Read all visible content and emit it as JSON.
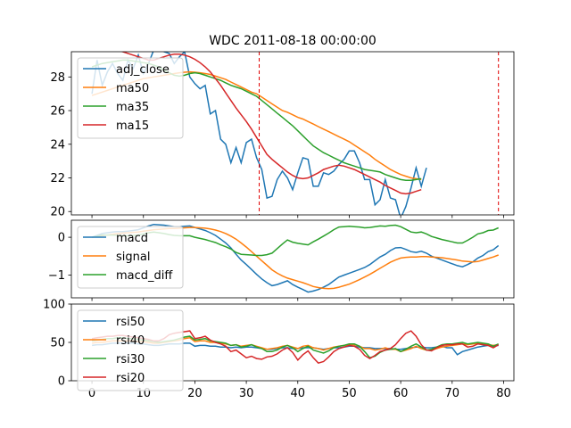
{
  "chart_data": {
    "type": "line",
    "title": "WDC 2011-08-18 00:00:00",
    "x_ticks": [
      0,
      10,
      20,
      30,
      40,
      50,
      60,
      70,
      80
    ],
    "xlim": [
      -4,
      82
    ],
    "vlines": [
      32.5,
      79
    ],
    "colors": {
      "blue": "#1f77b4",
      "orange": "#ff7f0e",
      "green": "#2ca02c",
      "red": "#d62728",
      "vline": "#e00000"
    },
    "panels": [
      {
        "id": "price",
        "ylim": [
          19.8,
          29.5
        ],
        "y_ticks": [
          20,
          22,
          24,
          26,
          28
        ],
        "legend": "upper left",
        "series": [
          {
            "name": "adj_close",
            "color": "blue",
            "x_start": 0,
            "values": [
              27.0,
              29.0,
              27.5,
              28.3,
              28.8,
              28.2,
              27.8,
              29.0,
              28.5,
              29.3,
              28.2,
              28.8,
              29.6,
              29.8,
              29.5,
              29.4,
              28.8,
              29.2,
              29.5,
              28.0,
              27.6,
              27.3,
              27.5,
              25.8,
              26.0,
              24.3,
              24.0,
              22.9,
              23.8,
              22.9,
              24.1,
              24.3,
              23.2,
              22.5,
              20.8,
              20.9,
              21.9,
              22.4,
              22.0,
              21.3,
              22.3,
              23.2,
              23.1,
              21.5,
              21.5,
              22.3,
              22.2,
              22.4,
              22.8,
              23.1,
              23.6,
              23.6,
              22.9,
              21.9,
              21.9,
              20.4,
              20.7,
              21.9,
              20.8,
              20.7,
              19.6,
              20.3,
              21.4,
              22.6,
              21.5,
              22.6
            ]
          },
          {
            "name": "ma50",
            "color": "orange",
            "x_start": 0,
            "values": [
              26.9,
              27.0,
              27.1,
              27.2,
              27.3,
              27.4,
              27.5,
              27.6,
              27.7,
              27.8,
              27.9,
              27.95,
              28.0,
              28.05,
              28.1,
              28.15,
              28.2,
              28.25,
              28.28,
              28.3,
              28.28,
              28.25,
              28.2,
              28.15,
              28.05,
              27.95,
              27.85,
              27.7,
              27.55,
              27.4,
              27.25,
              27.1,
              27.0,
              26.8,
              26.6,
              26.4,
              26.2,
              26.0,
              25.9,
              25.75,
              25.6,
              25.5,
              25.35,
              25.2,
              25.05,
              24.9,
              24.75,
              24.6,
              24.45,
              24.3,
              24.15,
              23.95,
              23.75,
              23.55,
              23.35,
              23.1,
              22.9,
              22.7,
              22.5,
              22.35,
              22.2,
              22.1,
              22.0,
              21.95,
              21.9
            ]
          },
          {
            "name": "ma35",
            "color": "green",
            "x_start": 0,
            "values": [
              28.6,
              28.7,
              28.8,
              28.85,
              28.9,
              28.95,
              29.0,
              29.0,
              28.95,
              28.9,
              28.85,
              28.8,
              28.7,
              28.6,
              28.4,
              28.25,
              28.1,
              28.05,
              28.1,
              28.2,
              28.25,
              28.2,
              28.1,
              28.0,
              27.9,
              27.8,
              27.65,
              27.5,
              27.4,
              27.3,
              27.15,
              27.0,
              26.85,
              26.6,
              26.35,
              26.1,
              25.85,
              25.6,
              25.35,
              25.1,
              24.8,
              24.5,
              24.2,
              23.9,
              23.7,
              23.5,
              23.35,
              23.2,
              23.05,
              22.9,
              22.8,
              22.7,
              22.6,
              22.5,
              22.45,
              22.4,
              22.35,
              22.2,
              22.1,
              22.0,
              21.9,
              21.85,
              21.85,
              21.9,
              21.95
            ]
          },
          {
            "name": "ma15",
            "color": "red",
            "x_start": 0,
            "values": [
              29.6,
              29.7,
              29.7,
              29.75,
              29.7,
              29.6,
              29.5,
              29.4,
              29.3,
              29.2,
              29.1,
              29.0,
              29.0,
              29.1,
              29.2,
              29.3,
              29.35,
              29.35,
              29.3,
              29.2,
              29.05,
              28.85,
              28.6,
              28.3,
              27.9,
              27.5,
              27.05,
              26.6,
              26.15,
              25.75,
              25.35,
              24.9,
              24.4,
              23.9,
              23.4,
              23.1,
              22.85,
              22.6,
              22.35,
              22.15,
              22.0,
              21.95,
              22.0,
              22.15,
              22.3,
              22.5,
              22.6,
              22.7,
              22.75,
              22.7,
              22.6,
              22.5,
              22.35,
              22.2,
              22.05,
              21.9,
              21.75,
              21.55,
              21.4,
              21.25,
              21.1,
              21.05,
              21.1,
              21.2,
              21.3
            ]
          }
        ]
      },
      {
        "id": "macd",
        "ylim": [
          -1.6,
          0.45
        ],
        "y_ticks": [
          0,
          -1
        ],
        "legend": "upper left",
        "series": [
          {
            "name": "macd",
            "color": "blue",
            "x_start": 0,
            "values": [
              0.0,
              0.05,
              0.1,
              0.12,
              0.14,
              0.15,
              0.15,
              0.16,
              0.18,
              0.2,
              0.25,
              0.3,
              0.34,
              0.33,
              0.32,
              0.3,
              0.28,
              0.28,
              0.29,
              0.3,
              0.26,
              0.22,
              0.18,
              0.12,
              0.05,
              -0.05,
              -0.15,
              -0.28,
              -0.45,
              -0.6,
              -0.72,
              -0.85,
              -0.98,
              -1.1,
              -1.2,
              -1.28,
              -1.25,
              -1.2,
              -1.15,
              -1.25,
              -1.32,
              -1.38,
              -1.45,
              -1.42,
              -1.38,
              -1.32,
              -1.25,
              -1.15,
              -1.05,
              -1.0,
              -0.95,
              -0.9,
              -0.85,
              -0.8,
              -0.72,
              -0.62,
              -0.52,
              -0.45,
              -0.35,
              -0.28,
              -0.27,
              -0.32,
              -0.38,
              -0.4,
              -0.37,
              -0.42,
              -0.5,
              -0.55,
              -0.6,
              -0.65,
              -0.7,
              -0.75,
              -0.78,
              -0.72,
              -0.65,
              -0.55,
              -0.48,
              -0.38,
              -0.33,
              -0.22
            ]
          },
          {
            "name": "signal",
            "color": "orange",
            "x_start": 0,
            "values": [
              0.0,
              0.02,
              0.04,
              0.06,
              0.08,
              0.1,
              0.11,
              0.12,
              0.13,
              0.14,
              0.16,
              0.18,
              0.2,
              0.21,
              0.22,
              0.23,
              0.23,
              0.24,
              0.25,
              0.26,
              0.26,
              0.25,
              0.24,
              0.22,
              0.19,
              0.15,
              0.1,
              0.03,
              -0.05,
              -0.15,
              -0.26,
              -0.38,
              -0.5,
              -0.62,
              -0.74,
              -0.86,
              -0.95,
              -1.02,
              -1.08,
              -1.12,
              -1.16,
              -1.2,
              -1.25,
              -1.3,
              -1.33,
              -1.35,
              -1.36,
              -1.35,
              -1.32,
              -1.28,
              -1.24,
              -1.18,
              -1.12,
              -1.05,
              -0.98,
              -0.9,
              -0.82,
              -0.74,
              -0.66,
              -0.6,
              -0.55,
              -0.53,
              -0.52,
              -0.52,
              -0.51,
              -0.51,
              -0.52,
              -0.53,
              -0.54,
              -0.56,
              -0.58,
              -0.6,
              -0.63,
              -0.64,
              -0.65,
              -0.64,
              -0.6,
              -0.56,
              -0.52,
              -0.47
            ]
          },
          {
            "name": "macd_diff",
            "color": "green",
            "x_start": 0,
            "values": [
              0.0,
              0.03,
              0.06,
              0.06,
              0.06,
              0.05,
              0.04,
              0.04,
              0.05,
              0.06,
              0.09,
              0.12,
              0.14,
              0.12,
              0.1,
              0.07,
              0.05,
              0.04,
              0.04,
              0.04,
              0.0,
              -0.03,
              -0.06,
              -0.1,
              -0.14,
              -0.2,
              -0.25,
              -0.31,
              -0.4,
              -0.45,
              -0.46,
              -0.47,
              -0.48,
              -0.48,
              -0.46,
              -0.42,
              -0.3,
              -0.18,
              -0.07,
              -0.13,
              -0.16,
              -0.18,
              -0.2,
              -0.12,
              -0.05,
              0.03,
              0.11,
              0.2,
              0.27,
              0.28,
              0.29,
              0.28,
              0.27,
              0.25,
              0.26,
              0.28,
              0.3,
              0.29,
              0.31,
              0.32,
              0.28,
              0.21,
              0.14,
              0.12,
              0.14,
              0.09,
              0.02,
              -0.02,
              -0.06,
              -0.09,
              -0.12,
              -0.15,
              -0.15,
              -0.08,
              0.0,
              0.09,
              0.12,
              0.18,
              0.19,
              0.25
            ]
          }
        ]
      },
      {
        "id": "rsi",
        "ylim": [
          0,
          100
        ],
        "y_ticks": [
          0,
          50,
          100
        ],
        "legend": "upper left",
        "series": [
          {
            "name": "rsi50",
            "color": "blue",
            "x_start": 0,
            "values": [
              46,
              47,
              47,
              48,
              49,
              49,
              49,
              49,
              49,
              48,
              48,
              47,
              46,
              46,
              47,
              48,
              48,
              48,
              49,
              49,
              45,
              46,
              46,
              45,
              45,
              44,
              44,
              43,
              44,
              43,
              44,
              44,
              43,
              42,
              41,
              41,
              42,
              43,
              43,
              42,
              42,
              43,
              43,
              43,
              42,
              41,
              42,
              43,
              43,
              44,
              45,
              45,
              44,
              43,
              43,
              42,
              42,
              42,
              42,
              41,
              41,
              42,
              43,
              44,
              44,
              43,
              43,
              44,
              45,
              43,
              43,
              34,
              38,
              40,
              42,
              44,
              45,
              46,
              45,
              46
            ]
          },
          {
            "name": "rsi40",
            "color": "orange",
            "x_start": 0,
            "values": [
              49,
              50,
              50,
              51,
              52,
              52,
              52,
              52,
              52,
              51,
              51,
              50,
              49,
              49,
              50,
              51,
              52,
              53,
              55,
              56,
              51,
              52,
              52,
              50,
              50,
              49,
              48,
              46,
              47,
              45,
              46,
              47,
              45,
              43,
              41,
              42,
              43,
              45,
              46,
              44,
              42,
              45,
              46,
              43,
              42,
              40,
              42,
              44,
              45,
              46,
              47,
              47,
              45,
              42,
              42,
              40,
              41,
              43,
              41,
              41,
              38,
              40,
              42,
              45,
              42,
              40,
              40,
              42,
              44,
              45,
              46,
              47,
              48,
              47,
              48,
              49,
              48,
              47,
              46,
              47
            ]
          },
          {
            "name": "rsi30",
            "color": "green",
            "x_start": 0,
            "values": [
              52,
              53,
              54,
              55,
              55,
              56,
              56,
              55,
              55,
              54,
              53,
              52,
              51,
              50,
              51,
              52,
              53,
              55,
              57,
              58,
              53,
              54,
              55,
              52,
              51,
              50,
              49,
              46,
              47,
              44,
              45,
              47,
              44,
              42,
              38,
              38,
              40,
              44,
              46,
              43,
              38,
              42,
              45,
              40,
              38,
              36,
              39,
              43,
              45,
              46,
              48,
              48,
              45,
              38,
              30,
              32,
              37,
              40,
              41,
              42,
              38,
              41,
              45,
              48,
              44,
              40,
              41,
              44,
              47,
              48,
              48,
              49,
              50,
              48,
              49,
              50,
              49,
              48,
              45,
              48
            ]
          },
          {
            "name": "rsi20",
            "color": "red",
            "x_start": 0,
            "values": [
              55,
              56,
              57,
              58,
              58,
              59,
              59,
              58,
              57,
              56,
              55,
              54,
              52,
              52,
              55,
              60,
              62,
              63,
              64,
              65,
              55,
              56,
              58,
              53,
              50,
              48,
              45,
              38,
              40,
              35,
              30,
              32,
              29,
              28,
              31,
              32,
              35,
              40,
              43,
              37,
              27,
              34,
              39,
              30,
              23,
              25,
              31,
              38,
              42,
              44,
              46,
              45,
              41,
              33,
              29,
              33,
              38,
              40,
              42,
              47,
              55,
              62,
              65,
              58,
              47,
              40,
              39,
              43,
              46,
              47,
              47,
              48,
              48,
              44,
              45,
              48,
              47,
              46,
              43,
              47
            ]
          }
        ]
      }
    ]
  }
}
